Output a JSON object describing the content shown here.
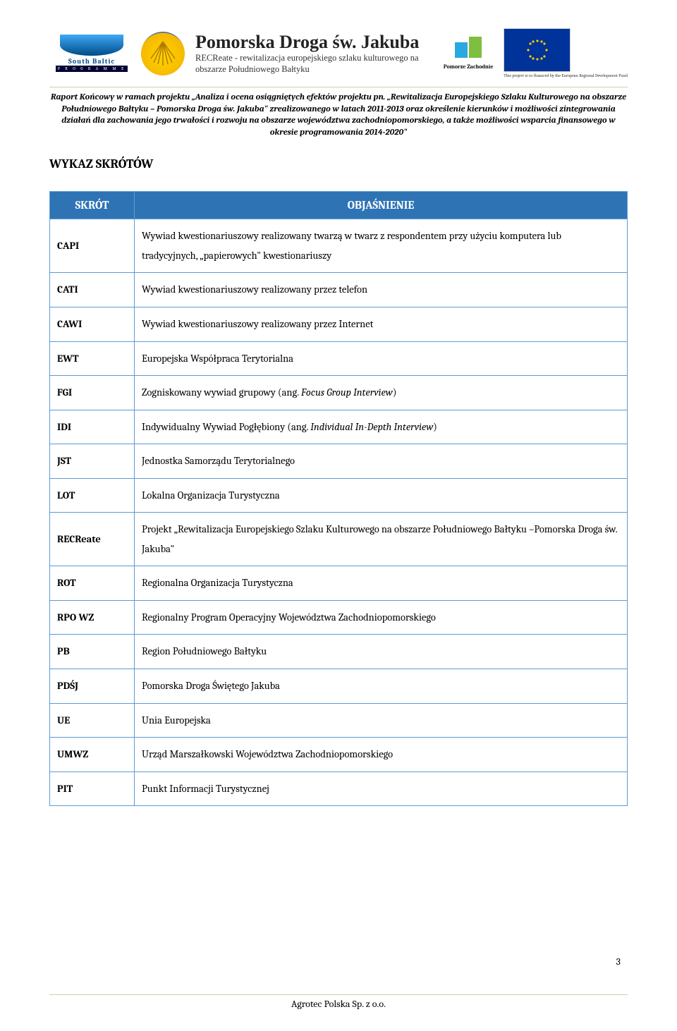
{
  "header": {
    "south_baltic_label": "South Baltic",
    "south_baltic_sub": "P R O G R A M M E",
    "title_main": "Pomorska Droga św. Jakuba",
    "title_sub": "RECReate - rewitalizacja europejskiego szlaku kulturowego na obszarze Południowego Bałtyku",
    "pomorze_label": "Pomorze Zachodnie",
    "eu_caption": "This project is co-financed by the European Regional Development Fund"
  },
  "report_description": "Raport Końcowy w ramach projektu „Analiza i ocena osiągniętych efektów projektu pn. „Rewitalizacja Europejskiego Szlaku Kulturowego na obszarze Południowego Bałtyku – Pomorska Droga św. Jakuba\" zrealizowanego w latach 2011-2013 oraz określenie kierunków i możliwości zintegrowania działań dla zachowania jego trwałości i rozwoju na obszarze województwa zachodniopomorskiego, a także możliwości wsparcia finansowego w okresie programowania 2014-2020\"",
  "section_title": "WYKAZ SKRÓTÓW",
  "table": {
    "header_col1": "SKRÓT",
    "header_col2": "OBJAŚNIENIE",
    "rows": [
      {
        "abbr": "CAPI",
        "desc": "Wywiad kwestionariuszowy realizowany twarzą w twarz z respondentem przy użyciu komputera lub tradycyjnych, „papierowych\" kwestionariuszy"
      },
      {
        "abbr": "CATI",
        "desc": "Wywiad kwestionariuszowy realizowany przez telefon"
      },
      {
        "abbr": "CAWI",
        "desc": "Wywiad kwestionariuszowy realizowany przez Internet"
      },
      {
        "abbr": "EWT",
        "desc": "Europejska Współpraca Terytorialna"
      },
      {
        "abbr": "FGI",
        "desc": "Zogniskowany wywiad grupowy (ang. Focus Group Interview)"
      },
      {
        "abbr": "IDI",
        "desc": "Indywidualny Wywiad Pogłębiony (ang. Individual In-Depth Interview)"
      },
      {
        "abbr": "JST",
        "desc": "Jednostka Samorządu Terytorialnego"
      },
      {
        "abbr": "LOT",
        "desc": "Lokalna Organizacja Turystyczna"
      },
      {
        "abbr": "RECReate",
        "desc": "Projekt „Rewitalizacja Europejskiego Szlaku Kulturowego na obszarze Południowego Bałtyku –Pomorska Droga św. Jakuba\""
      },
      {
        "abbr": "ROT",
        "desc": "Regionalna Organizacja Turystyczna"
      },
      {
        "abbr": "RPO WZ",
        "desc": "Regionalny Program Operacyjny Województwa Zachodniopomorskiego"
      },
      {
        "abbr": "PB",
        "desc": "Region Południowego Bałtyku"
      },
      {
        "abbr": "PDŚJ",
        "desc": "Pomorska Droga Świętego Jakuba"
      },
      {
        "abbr": "UE",
        "desc": "Unia Europejska"
      },
      {
        "abbr": "UMWZ",
        "desc": "Urząd Marszałkowski Województwa Zachodniopomorskiego"
      },
      {
        "abbr": "PIT",
        "desc": "Punkt Informacji Turystycznej"
      }
    ]
  },
  "page_number": "3",
  "footer_text": "Agrotec Polska Sp. z o.o.",
  "colors": {
    "table_border": "#5b9bd5",
    "table_header_bg": "#2e74b5",
    "hr_color": "#c4d6a0",
    "eu_blue": "#003399",
    "eu_yellow": "#ffcc00"
  }
}
